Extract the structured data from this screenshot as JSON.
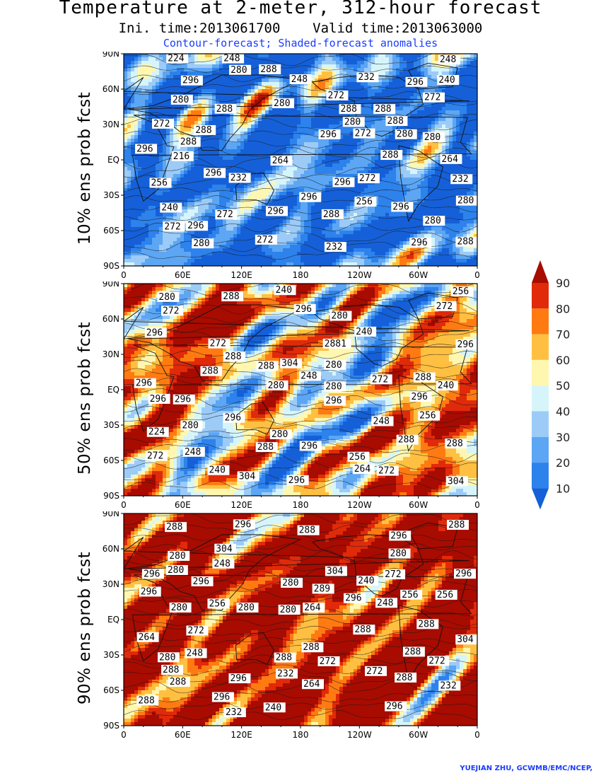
{
  "title": "Temperature at 2-meter, 312-hour forecast",
  "subtitle": "Ini. time:2013061700    Valid time:2013063000",
  "description": "Contour-forecast; Shaded-forecast anomalies",
  "credit": "YUEJIAN ZHU, GCWMB/EMC/NCEP,",
  "chart_data": [
    {
      "type": "heatmap",
      "panel_label": "10% ens prob fcst",
      "x_ticks": [
        "0",
        "60E",
        "120E",
        "180",
        "120W",
        "60W",
        "0"
      ],
      "y_ticks": [
        "90N",
        "60N",
        "30N",
        "EQ",
        "30S",
        "60S",
        "90S"
      ],
      "contour_labels": [
        "272",
        "272",
        "272",
        "264",
        "272",
        "280",
        "272",
        "272",
        "256",
        "280",
        "288",
        "280",
        "280",
        "288",
        "296",
        "288",
        "288",
        "296",
        "296",
        "296",
        "280",
        "296",
        "288",
        "296",
        "296",
        "288",
        "296",
        "296",
        "296",
        "280",
        "296",
        "288",
        "288",
        "288",
        "280",
        "280",
        "288",
        "280",
        "248",
        "240",
        "272",
        "264",
        "256",
        "248",
        "272",
        "248",
        "232",
        "224",
        "232",
        "240",
        "232",
        "232",
        "216"
      ]
    },
    {
      "type": "heatmap",
      "panel_label": "50% ens prob fcst",
      "x_ticks": [
        "0",
        "60E",
        "120E",
        "180",
        "120W",
        "60W",
        "0"
      ],
      "y_ticks": [
        "90N",
        "60N",
        "30N",
        "EQ",
        "30S",
        "60S",
        "90S"
      ],
      "contour_labels": [
        "272",
        "272",
        "272",
        "264",
        "280",
        "2881",
        "272",
        "280",
        "296",
        "288",
        "288",
        "288",
        "296",
        "296",
        "288",
        "296",
        "296",
        "296",
        "280",
        "304",
        "280",
        "304",
        "304",
        "296",
        "296",
        "296",
        "296",
        "280",
        "288",
        "296",
        "288",
        "288",
        "288",
        "280",
        "280",
        "272",
        "256",
        "256",
        "248",
        "240",
        "224",
        "248",
        "240",
        "240",
        "272",
        "256",
        "248",
        "240"
      ]
    },
    {
      "type": "heatmap",
      "panel_label": "90% ens prob fcst",
      "x_ticks": [
        "0",
        "60E",
        "120E",
        "180",
        "120W",
        "60W",
        "0"
      ],
      "y_ticks": [
        "90N",
        "60N",
        "30N",
        "EQ",
        "30S",
        "60S",
        "90S"
      ],
      "contour_labels": [
        "272",
        "280",
        "272",
        "272",
        "288",
        "280",
        "280",
        "296",
        "288",
        "280",
        "288",
        "289",
        "296",
        "296",
        "288",
        "296",
        "296",
        "304",
        "288",
        "288",
        "296",
        "280",
        "296",
        "304",
        "304",
        "296",
        "296",
        "288",
        "288",
        "296",
        "288",
        "288",
        "288",
        "280",
        "288",
        "280",
        "280",
        "264",
        "248",
        "256",
        "232",
        "232",
        "272",
        "264",
        "248",
        "240",
        "256",
        "272",
        "264",
        "248",
        "256",
        "232",
        "240"
      ]
    }
  ],
  "colorbar": {
    "levels": [
      "10",
      "20",
      "30",
      "40",
      "50",
      "60",
      "70",
      "80",
      "90"
    ],
    "colors": [
      "#1560d8",
      "#2d82ec",
      "#5ca6f4",
      "#9ccbf8",
      "#d6f5fa",
      "#fff7b0",
      "#ffc042",
      "#ff7b12",
      "#e02a0a",
      "#a80b00"
    ]
  }
}
